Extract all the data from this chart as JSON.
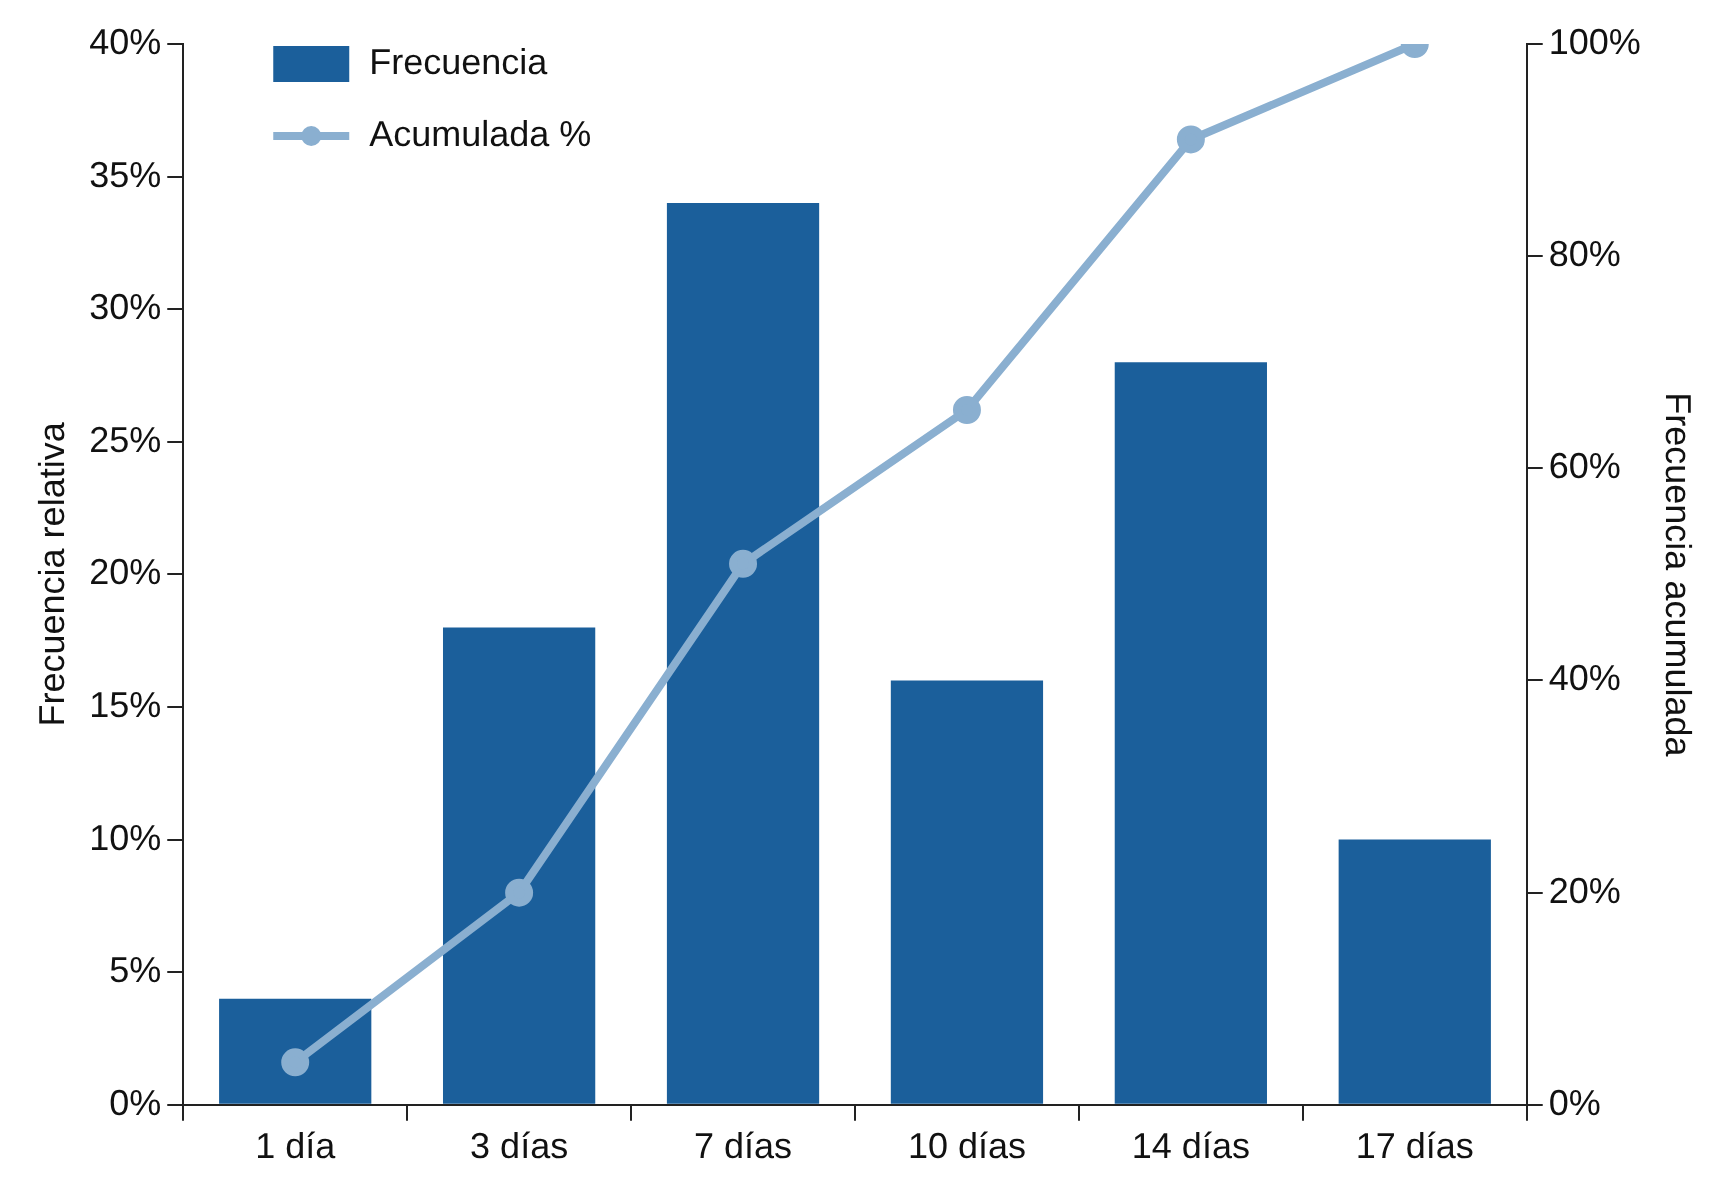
{
  "chart_data": {
    "type": "bar",
    "ylabel": "Frecuencia relativa",
    "y2label": "Frecuencia acumulada",
    "categories": [
      "1 día",
      "3 días",
      "7 días",
      "10 días",
      "14 días",
      "17 días"
    ],
    "series": [
      {
        "name": "Frecuencia",
        "color": "#1b5f9b",
        "values": [
          4,
          18,
          34,
          16,
          28,
          10
        ]
      },
      {
        "name": "Acumulada %",
        "type": "line",
        "axis": "y2",
        "color": "#8aafd0",
        "marker": "circle",
        "values": [
          4,
          20,
          51,
          65.5,
          91,
          100
        ]
      }
    ],
    "ylim": [
      0,
      40
    ],
    "yticks": [
      {
        "value": 0,
        "label": "0%"
      },
      {
        "value": 5,
        "label": "5%"
      },
      {
        "value": 10,
        "label": "10%"
      },
      {
        "value": 15,
        "label": "15%"
      },
      {
        "value": 20,
        "label": "20%"
      },
      {
        "value": 25,
        "label": "25%"
      },
      {
        "value": 30,
        "label": "30%"
      },
      {
        "value": 35,
        "label": "35%"
      },
      {
        "value": 40,
        "label": "40%"
      }
    ],
    "y2lim": [
      0,
      100
    ],
    "y2ticks": [
      {
        "value": 0,
        "label": "0%"
      },
      {
        "value": 20,
        "label": "20%"
      },
      {
        "value": 40,
        "label": "40%"
      },
      {
        "value": 60,
        "label": "60%"
      },
      {
        "value": 80,
        "label": "80%"
      },
      {
        "value": 100,
        "label": "100%"
      }
    ],
    "grid": false,
    "legend": "top left"
  }
}
